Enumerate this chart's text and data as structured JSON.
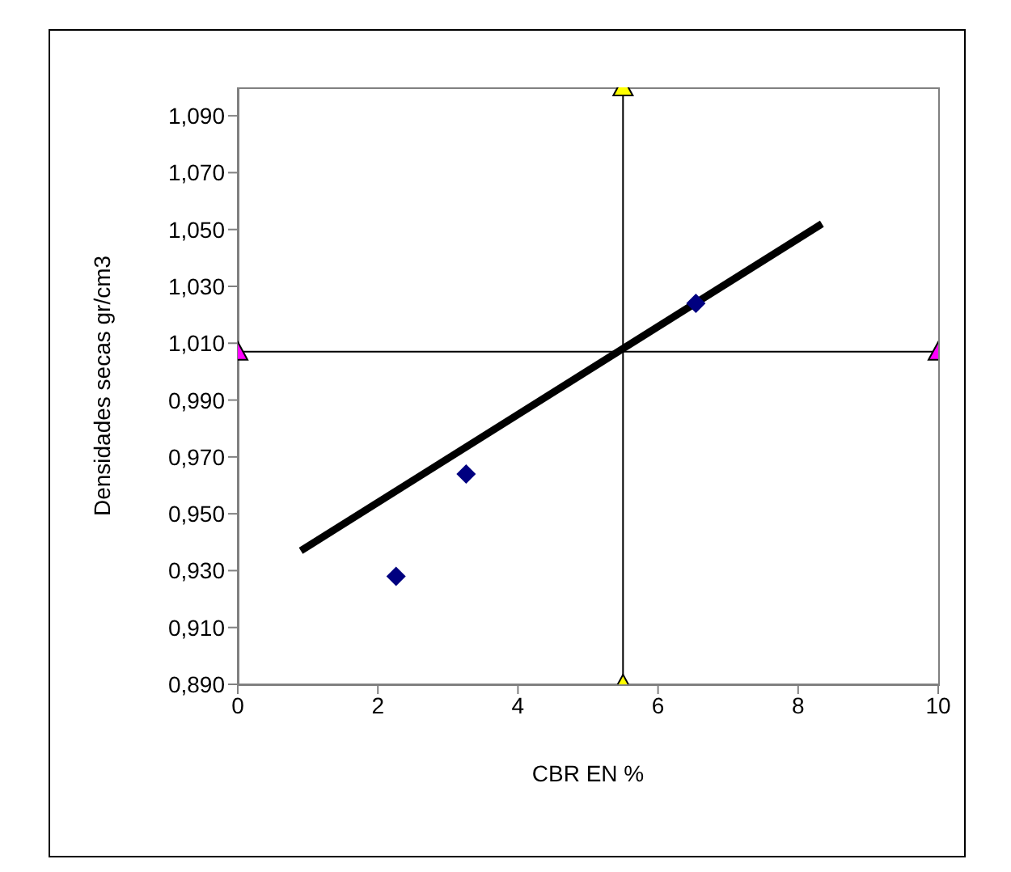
{
  "chart_data": {
    "type": "scatter",
    "xlabel": "CBR EN %",
    "ylabel": "Densidades secas gr/cm3",
    "xlim": [
      0,
      10
    ],
    "xticks": [
      0,
      2,
      4,
      6,
      8,
      10
    ],
    "ylim": [
      0.89,
      1.1
    ],
    "yticks": [
      {
        "value": 0.89,
        "label": "0,890"
      },
      {
        "value": 0.91,
        "label": "0,910"
      },
      {
        "value": 0.93,
        "label": "0,930"
      },
      {
        "value": 0.95,
        "label": "0,950"
      },
      {
        "value": 0.97,
        "label": "0,970"
      },
      {
        "value": 0.99,
        "label": "0,990"
      },
      {
        "value": 1.01,
        "label": "1,010"
      },
      {
        "value": 1.03,
        "label": "1,030"
      },
      {
        "value": 1.05,
        "label": "1,050"
      },
      {
        "value": 1.07,
        "label": "1,070"
      },
      {
        "value": 1.09,
        "label": "1,090"
      }
    ],
    "grid": false,
    "legend": false,
    "series": [
      {
        "type": "line",
        "marker": "none",
        "color": "#000000",
        "x": [
          0.9,
          8.34
        ],
        "values": [
          0.937,
          1.052
        ]
      },
      {
        "type": "line",
        "marker": "triangle",
        "color": "#000000",
        "colors": [
          "#ffff00",
          "#ffff00"
        ],
        "x": [
          5.5,
          5.5
        ],
        "values": [
          0.89,
          1.1
        ]
      },
      {
        "type": "line",
        "marker": "triangle",
        "color": "#000000",
        "colors": [
          "#ff00ff",
          "#ff00ff"
        ],
        "x": [
          0,
          10
        ],
        "values": [
          1.007,
          1.007
        ]
      },
      {
        "marker": "diamond",
        "color": "#000080",
        "x": [
          2.26,
          3.26,
          6.54
        ],
        "values": [
          0.928,
          0.964,
          1.024
        ]
      }
    ]
  }
}
